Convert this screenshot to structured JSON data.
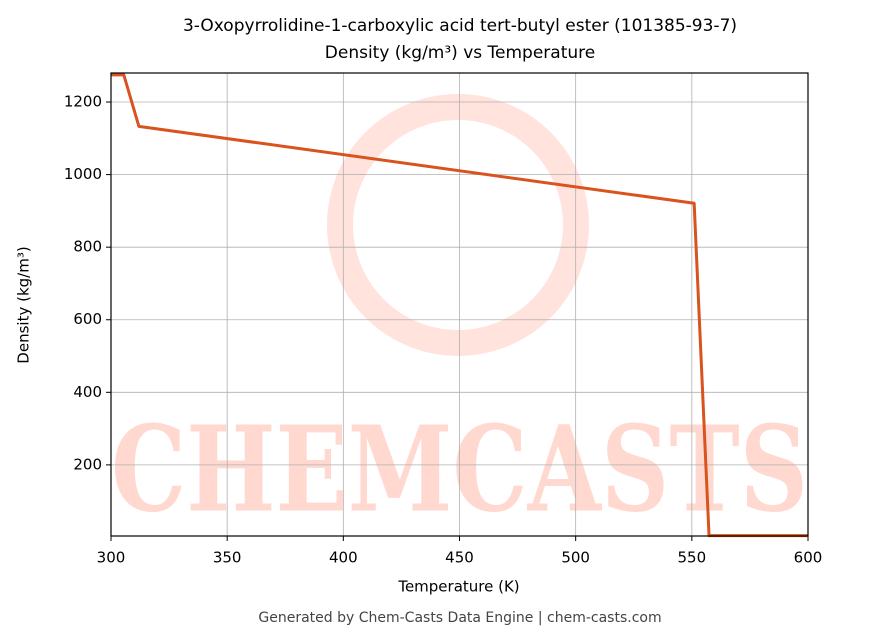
{
  "chart_data": {
    "type": "line",
    "title": "3-Oxopyrrolidine-1-carboxylic acid tert-butyl ester (101385-93-7)",
    "subtitle": "Density (kg/m³) vs Temperature",
    "x_label": "Temperature (K)",
    "y_label": "Density (kg/m³)",
    "footer": "Generated by Chem-Casts Data Engine | chem-casts.com",
    "watermark": "CHEMCASTS",
    "x": [
      300,
      305.5,
      312,
      551,
      557.4,
      600
    ],
    "values": [
      1275,
      1275,
      1133,
      921,
      5,
      5
    ],
    "color": "#d9531e",
    "xlim": [
      300,
      600
    ],
    "xticks": [
      300,
      350,
      400,
      450,
      500,
      550,
      600
    ],
    "ylim": [
      4,
      1280
    ],
    "yticks": [
      200,
      400,
      600,
      800,
      1000,
      1200
    ],
    "grid": true
  }
}
